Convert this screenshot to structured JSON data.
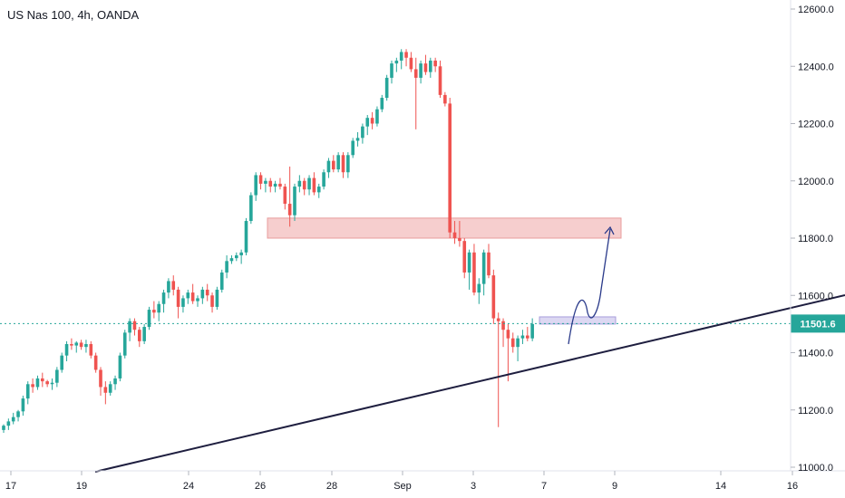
{
  "header": {
    "title": "US Nas 100, 4h, OANDA"
  },
  "colors": {
    "up": "#26a69a",
    "down": "#ef5350",
    "trendline": "#1e1e3f",
    "last_price": "#26a69a",
    "resistance_zone": "#f5c6c6",
    "support_zone": "#d9d4f1",
    "projection": "#2a3a8a"
  },
  "chart_data": {
    "type": "candlestick",
    "ylim": [
      11000,
      12600
    ],
    "y_ticks": [
      "12600.0",
      "12400.0",
      "12200.0",
      "12000.0",
      "11800.0",
      "11600.0",
      "11400.0",
      "11200.0",
      "11000.0"
    ],
    "x_ticks": [
      "17",
      "19",
      "24",
      "26",
      "28",
      "Sep",
      "3",
      "7",
      "9",
      "14",
      "16"
    ],
    "last_price": 11501.6,
    "last_price_label": "11501.6",
    "candles": [
      [
        11130,
        11150,
        11120,
        11145
      ],
      [
        11145,
        11170,
        11130,
        11160
      ],
      [
        11160,
        11190,
        11150,
        11175
      ],
      [
        11175,
        11200,
        11160,
        11195
      ],
      [
        11195,
        11250,
        11180,
        11240
      ],
      [
        11240,
        11300,
        11220,
        11290
      ],
      [
        11290,
        11310,
        11260,
        11280
      ],
      [
        11280,
        11320,
        11270,
        11310
      ],
      [
        11310,
        11330,
        11280,
        11300
      ],
      [
        11300,
        11305,
        11280,
        11290
      ],
      [
        11290,
        11310,
        11270,
        11295
      ],
      [
        11295,
        11350,
        11280,
        11340
      ],
      [
        11340,
        11400,
        11330,
        11390
      ],
      [
        11390,
        11440,
        11370,
        11430
      ],
      [
        11430,
        11450,
        11410,
        11425
      ],
      [
        11425,
        11440,
        11400,
        11435
      ],
      [
        11435,
        11445,
        11410,
        11420
      ],
      [
        11420,
        11445,
        11400,
        11430
      ],
      [
        11430,
        11440,
        11380,
        11390
      ],
      [
        11390,
        11400,
        11330,
        11340
      ],
      [
        11340,
        11350,
        11250,
        11280
      ],
      [
        11280,
        11300,
        11220,
        11260
      ],
      [
        11260,
        11300,
        11250,
        11290
      ],
      [
        11290,
        11320,
        11270,
        11310
      ],
      [
        11310,
        11400,
        11300,
        11390
      ],
      [
        11390,
        11480,
        11380,
        11470
      ],
      [
        11470,
        11520,
        11440,
        11510
      ],
      [
        11510,
        11520,
        11460,
        11480
      ],
      [
        11480,
        11490,
        11420,
        11440
      ],
      [
        11440,
        11500,
        11430,
        11490
      ],
      [
        11490,
        11560,
        11480,
        11550
      ],
      [
        11550,
        11580,
        11520,
        11540
      ],
      [
        11540,
        11580,
        11510,
        11570
      ],
      [
        11570,
        11620,
        11540,
        11610
      ],
      [
        11610,
        11660,
        11590,
        11650
      ],
      [
        11650,
        11670,
        11600,
        11620
      ],
      [
        11620,
        11630,
        11520,
        11560
      ],
      [
        11560,
        11600,
        11540,
        11590
      ],
      [
        11590,
        11620,
        11570,
        11610
      ],
      [
        11610,
        11640,
        11570,
        11580
      ],
      [
        11580,
        11600,
        11560,
        11590
      ],
      [
        11590,
        11630,
        11570,
        11620
      ],
      [
        11620,
        11640,
        11580,
        11600
      ],
      [
        11600,
        11610,
        11540,
        11560
      ],
      [
        11560,
        11630,
        11550,
        11620
      ],
      [
        11620,
        11690,
        11610,
        11680
      ],
      [
        11680,
        11740,
        11660,
        11720
      ],
      [
        11720,
        11740,
        11710,
        11730
      ],
      [
        11730,
        11750,
        11720,
        11740
      ],
      [
        11740,
        11760,
        11710,
        11750
      ],
      [
        11750,
        11870,
        11740,
        11860
      ],
      [
        11860,
        11960,
        11850,
        11950
      ],
      [
        11950,
        12030,
        11930,
        12020
      ],
      [
        12020,
        12030,
        11970,
        11990
      ],
      [
        11990,
        12010,
        11960,
        12000
      ],
      [
        12000,
        12010,
        11960,
        11980
      ],
      [
        11980,
        12000,
        11960,
        11990
      ],
      [
        11990,
        12010,
        11970,
        11980
      ],
      [
        11980,
        11990,
        11900,
        11920
      ],
      [
        11920,
        12050,
        11840,
        11880
      ],
      [
        11880,
        11990,
        11860,
        11980
      ],
      [
        11980,
        12020,
        11960,
        12000
      ],
      [
        12000,
        12010,
        11950,
        11970
      ],
      [
        11970,
        12020,
        11950,
        12010
      ],
      [
        12010,
        12030,
        11950,
        11960
      ],
      [
        11960,
        11990,
        11940,
        11980
      ],
      [
        11980,
        12040,
        11970,
        12030
      ],
      [
        12030,
        12080,
        12010,
        12070
      ],
      [
        12070,
        12090,
        12030,
        12040
      ],
      [
        12040,
        12100,
        12030,
        12090
      ],
      [
        12090,
        12100,
        12010,
        12030
      ],
      [
        12030,
        12100,
        12010,
        12090
      ],
      [
        12090,
        12150,
        12080,
        12140
      ],
      [
        12140,
        12170,
        12120,
        12150
      ],
      [
        12150,
        12200,
        12130,
        12190
      ],
      [
        12190,
        12230,
        12160,
        12220
      ],
      [
        12220,
        12240,
        12180,
        12200
      ],
      [
        12200,
        12260,
        12190,
        12250
      ],
      [
        12250,
        12300,
        12240,
        12290
      ],
      [
        12290,
        12370,
        12280,
        12360
      ],
      [
        12360,
        12420,
        12340,
        12410
      ],
      [
        12410,
        12430,
        12380,
        12420
      ],
      [
        12420,
        12460,
        12390,
        12450
      ],
      [
        12450,
        12460,
        12400,
        12430
      ],
      [
        12430,
        12450,
        12380,
        12390
      ],
      [
        12390,
        12430,
        12180,
        12360
      ],
      [
        12360,
        12420,
        12340,
        12410
      ],
      [
        12410,
        12440,
        12370,
        12380
      ],
      [
        12380,
        12430,
        12360,
        12420
      ],
      [
        12420,
        12430,
        12380,
        12400
      ],
      [
        12400,
        12420,
        12290,
        12300
      ],
      [
        12300,
        12310,
        12260,
        12270
      ],
      [
        12270,
        12290,
        11800,
        11820
      ],
      [
        11820,
        11860,
        11780,
        11800
      ],
      [
        11800,
        11860,
        11770,
        11790
      ],
      [
        11790,
        11800,
        11660,
        11680
      ],
      [
        11680,
        11760,
        11620,
        11750
      ],
      [
        11750,
        11780,
        11600,
        11610
      ],
      [
        11610,
        11660,
        11570,
        11640
      ],
      [
        11640,
        11760,
        11600,
        11750
      ],
      [
        11750,
        11780,
        11660,
        11670
      ],
      [
        11670,
        11690,
        11500,
        11520
      ],
      [
        11520,
        11540,
        11140,
        11510
      ],
      [
        11510,
        11520,
        11420,
        11480
      ],
      [
        11480,
        11500,
        11300,
        11450
      ],
      [
        11450,
        11470,
        11400,
        11420
      ],
      [
        11420,
        11460,
        11370,
        11450
      ],
      [
        11450,
        11480,
        11430,
        11460
      ],
      [
        11460,
        11490,
        11440,
        11450
      ],
      [
        11450,
        11520,
        11440,
        11500
      ]
    ],
    "resistance_zone": [
      11800,
      11870
    ],
    "support_zone": [
      11500,
      11525
    ],
    "trendline": {
      "from": [
        2,
        10980
      ],
      "to": [
        150,
        11590
      ]
    },
    "projection": [
      [
        0,
        11450
      ],
      [
        2,
        11600
      ],
      [
        4,
        11520
      ],
      [
        8,
        11810
      ]
    ]
  }
}
